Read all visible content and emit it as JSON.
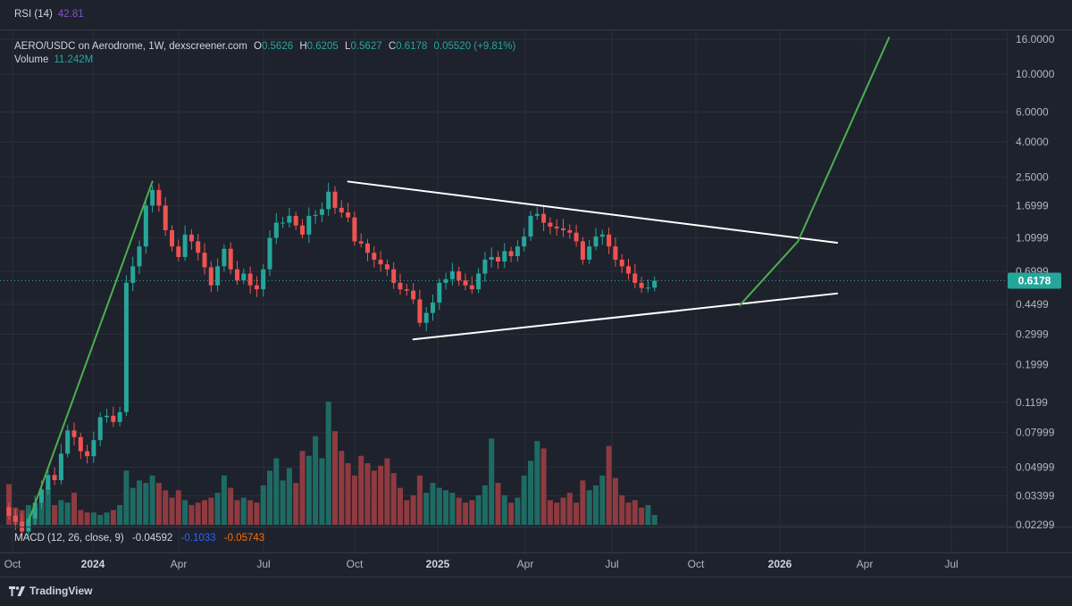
{
  "colors": {
    "background": "#1e222d",
    "up": "#26a69a",
    "down": "#ef5350",
    "up_vol": "#1e6b64",
    "down_vol": "#8e3a40",
    "grid": "#2a2e39",
    "axis_text": "#b2b5be",
    "trend_green": "#4caf50",
    "lines": "#ffffff",
    "price_badge": "#26a69a",
    "rsi": "#7e57c2",
    "macd": "#2962ff",
    "signal": "#ff6d00"
  },
  "indicators": {
    "rsi": {
      "label": "RSI (14)",
      "value": "42.81"
    },
    "macd": {
      "label": "MACD (12, 26, close, 9)",
      "hist": "-0.04592",
      "macd": "-0.1033",
      "signal": "-0.05743"
    }
  },
  "symbol": {
    "title": "AERO/USDC on Aerodrome, 1W, dexscreener.com",
    "o_label": "O",
    "o": "0.5626",
    "h_label": "H",
    "h": "0.6205",
    "l_label": "L",
    "l": "0.5627",
    "c_label": "C",
    "c": "0.6178",
    "change": "0.05520 (+9.81%)"
  },
  "volume": {
    "label": "Volume",
    "value": "11.242M"
  },
  "price_badge": "0.6178",
  "footer": {
    "brand": "TradingView"
  },
  "chart_data": {
    "type": "candlestick",
    "scale": "log",
    "title": "AERO/USDC on Aerodrome, 1W",
    "y_ticks": [
      "16.0000",
      "10.0000",
      "6.0000",
      "4.0000",
      "2.5000",
      "1.6999",
      "1.0999",
      "0.6999",
      "0.4499",
      "0.2999",
      "0.1999",
      "0.1199",
      "0.07999",
      "0.04999",
      "0.03399",
      "0.02299"
    ],
    "x_ticks": [
      "Oct",
      "2024",
      "Apr",
      "Jul",
      "Oct",
      "2025",
      "Apr",
      "Jul",
      "Oct",
      "2026",
      "Apr",
      "Jul"
    ],
    "last_price": 0.6178,
    "closes": [
      0.026,
      0.024,
      0.021,
      0.025,
      0.031,
      0.037,
      0.045,
      0.042,
      0.06,
      0.082,
      0.075,
      0.062,
      0.058,
      0.072,
      0.098,
      0.1,
      0.092,
      0.105,
      0.6,
      0.75,
      0.98,
      1.7,
      2.1,
      1.7,
      1.22,
      0.98,
      0.85,
      1.15,
      1.05,
      0.9,
      0.74,
      0.58,
      0.75,
      0.95,
      0.72,
      0.62,
      0.68,
      0.58,
      0.55,
      0.72,
      1.1,
      1.35,
      1.35,
      1.48,
      1.3,
      1.15,
      1.48,
      1.5,
      1.62,
      2.05,
      1.65,
      1.55,
      1.45,
      1.05,
      1.02,
      0.9,
      0.82,
      0.77,
      0.72,
      0.6,
      0.55,
      0.54,
      0.48,
      0.35,
      0.4,
      0.46,
      0.6,
      0.63,
      0.7,
      0.62,
      0.58,
      0.55,
      0.68,
      0.82,
      0.85,
      0.8,
      0.92,
      0.86,
      0.98,
      1.12,
      1.48,
      1.52,
      1.35,
      1.28,
      1.25,
      1.22,
      1.18,
      1.05,
      0.82,
      0.98,
      1.12,
      1.15,
      0.98,
      0.82,
      0.75,
      0.68,
      0.6,
      0.56,
      0.5626,
      0.6178
    ],
    "volume": [
      0.33,
      0.14,
      0.12,
      0.16,
      0.14,
      0.18,
      0.3,
      0.16,
      0.2,
      0.18,
      0.26,
      0.12,
      0.1,
      0.1,
      0.08,
      0.1,
      0.12,
      0.16,
      0.44,
      0.3,
      0.36,
      0.34,
      0.4,
      0.34,
      0.28,
      0.22,
      0.28,
      0.2,
      0.16,
      0.18,
      0.2,
      0.22,
      0.26,
      0.4,
      0.3,
      0.2,
      0.22,
      0.2,
      0.18,
      0.32,
      0.44,
      0.54,
      0.36,
      0.46,
      0.34,
      0.6,
      0.56,
      0.72,
      0.54,
      1.0,
      0.76,
      0.6,
      0.5,
      0.4,
      0.56,
      0.5,
      0.44,
      0.48,
      0.54,
      0.42,
      0.3,
      0.2,
      0.24,
      0.4,
      0.26,
      0.34,
      0.3,
      0.28,
      0.26,
      0.22,
      0.18,
      0.2,
      0.24,
      0.32,
      0.7,
      0.34,
      0.24,
      0.18,
      0.22,
      0.4,
      0.52,
      0.68,
      0.62,
      0.2,
      0.18,
      0.22,
      0.26,
      0.18,
      0.36,
      0.28,
      0.32,
      0.4,
      0.64,
      0.38,
      0.24,
      0.18,
      0.2,
      0.14,
      0.16,
      0.08
    ]
  },
  "drawings": {
    "resistance": {
      "from": {
        "week": 52,
        "price": 2.35
      },
      "to": {
        "week": 127,
        "price": 1.03
      }
    },
    "support": {
      "from": {
        "week": 62,
        "price": 0.28
      },
      "to": {
        "week": 127,
        "price": 0.52
      }
    },
    "rally": [
      {
        "week": 3,
        "price": 0.024
      },
      {
        "week": 22,
        "price": 2.35
      }
    ],
    "projection": [
      {
        "week": 112,
        "price": 0.44
      },
      {
        "week": 121,
        "price": 1.05
      },
      {
        "week": 135,
        "price": 16.5
      }
    ]
  }
}
